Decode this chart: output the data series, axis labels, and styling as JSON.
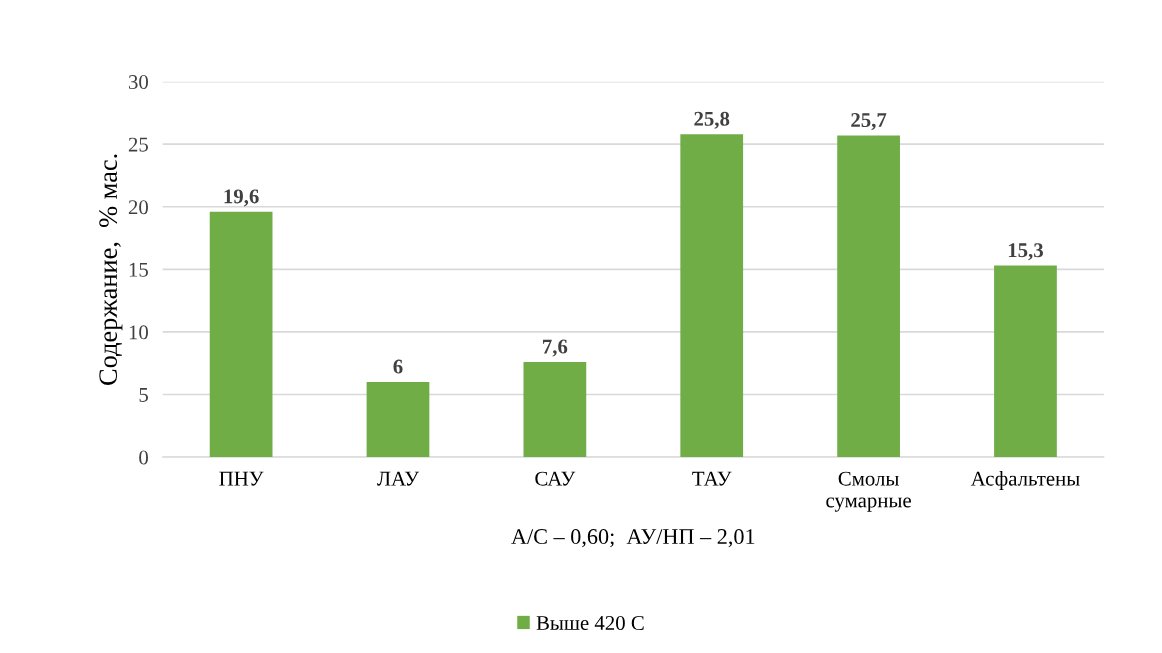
{
  "chart_data": {
    "type": "bar",
    "categories": [
      "ПНУ",
      "ЛАУ",
      "САУ",
      "ТАУ",
      "Смолы\nсумарные",
      "Асфальтены"
    ],
    "series": [
      {
        "name": "Выше 420 С",
        "color": "#70ad47",
        "values": [
          19.6,
          6,
          7.6,
          25.8,
          25.7,
          15.3
        ],
        "value_labels": [
          "19,6",
          "6",
          "7,6",
          "25,8",
          "25,7",
          "15,3"
        ]
      }
    ],
    "ylabel": "Содержание,  % мас.",
    "xlabel": "А/С – 0,60;  АУ/НП – 2,01",
    "ylim": [
      0,
      30
    ],
    "yticks": [
      0,
      5,
      10,
      15,
      20,
      25,
      30
    ],
    "grid": "y",
    "legend": "bottom"
  }
}
